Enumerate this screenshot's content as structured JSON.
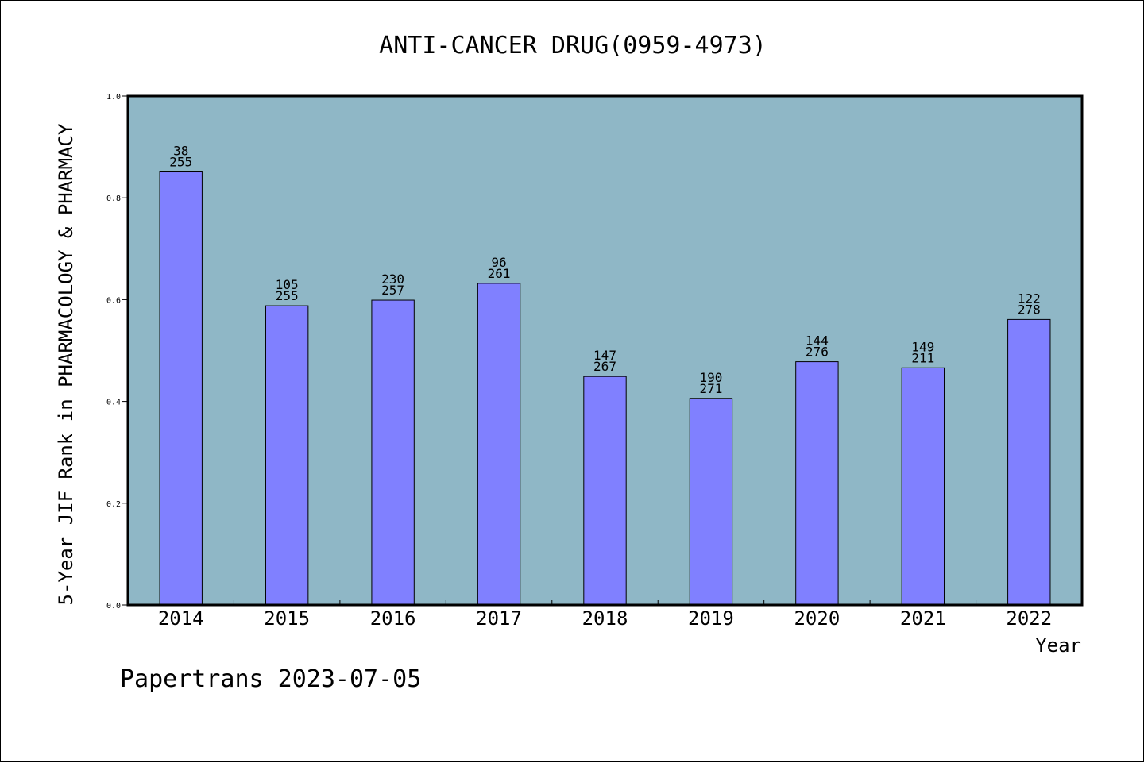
{
  "chart_data": {
    "type": "bar",
    "title": "ANTI-CANCER DRUG(0959-4973)",
    "xlabel": "Year",
    "ylabel": "5-Year JIF Rank in PHARMACOLOGY & PHARMACY",
    "categories": [
      "2014",
      "2015",
      "2016",
      "2017",
      "2018",
      "2019",
      "2020",
      "2021",
      "2022"
    ],
    "values": [
      0.851,
      0.588,
      0.599,
      0.632,
      0.449,
      0.406,
      0.478,
      0.466,
      0.561
    ],
    "rank_labels": [
      {
        "rank": "38",
        "total": "255"
      },
      {
        "rank": "105",
        "total": "255"
      },
      {
        "rank": "230",
        "total": "257"
      },
      {
        "rank": "96",
        "total": "261"
      },
      {
        "rank": "147",
        "total": "267"
      },
      {
        "rank": "190",
        "total": "271"
      },
      {
        "rank": "144",
        "total": "276"
      },
      {
        "rank": "149",
        "total": "211"
      },
      {
        "rank": "122",
        "total": "278"
      }
    ],
    "ylim": [
      0.0,
      1.0
    ],
    "yticks": [
      "0.0",
      "0.2",
      "0.4",
      "0.6",
      "0.8",
      "1.0"
    ],
    "grid": false,
    "colors": {
      "plot_background": "#8fb7c6",
      "bar": "#8080ff"
    }
  },
  "footer": "Papertrans 2023-07-05"
}
